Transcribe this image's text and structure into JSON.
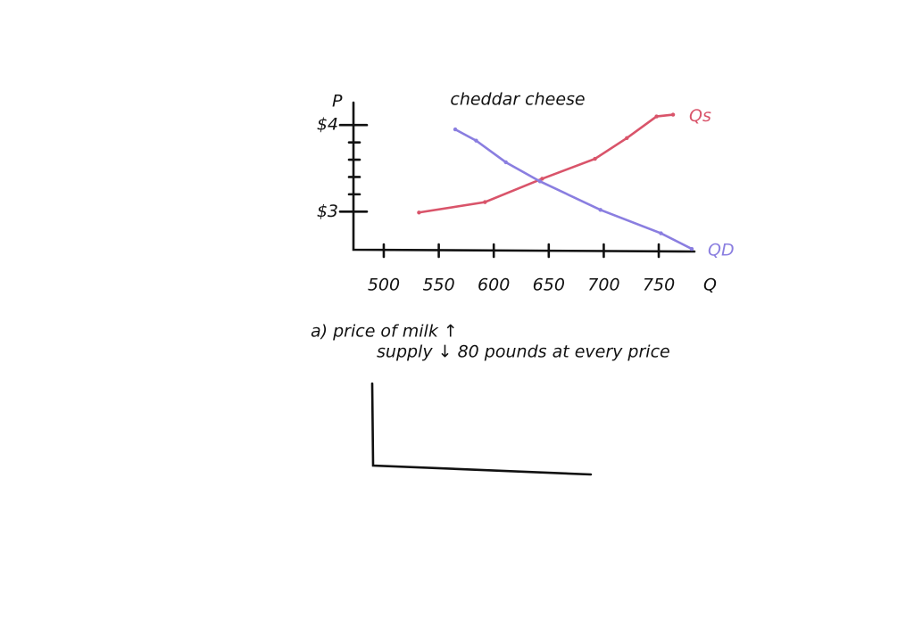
{
  "chart_data": {
    "type": "line",
    "title": "cheddar cheese",
    "x_label": "Q",
    "y_label": "P",
    "xlim": [
      470,
      780
    ],
    "ylim": [
      2.56,
      4.26
    ],
    "xticks": [
      500,
      550,
      600,
      650,
      700,
      750
    ],
    "yticks": [
      {
        "value": 3,
        "label": "$3"
      },
      {
        "value": 4,
        "label": "$4"
      }
    ],
    "minor_yticks": [
      3.2,
      3.4,
      3.6,
      3.8
    ],
    "series": [
      {
        "name": "Qs",
        "color": "#d9546a",
        "x": [
          532,
          592,
          644,
          692,
          721,
          748,
          763
        ],
        "values": [
          2.99,
          3.11,
          3.38,
          3.61,
          3.85,
          4.1,
          4.12
        ]
      },
      {
        "name": "QD",
        "color": "#8a7ee0",
        "x": [
          565,
          584,
          611,
          642,
          697,
          752,
          780
        ],
        "values": [
          3.95,
          3.82,
          3.57,
          3.35,
          3.02,
          2.75,
          2.57
        ]
      }
    ],
    "annotations": [
      "a) price of milk ↑",
      "supply ↓ 80 pounds at every price"
    ]
  }
}
